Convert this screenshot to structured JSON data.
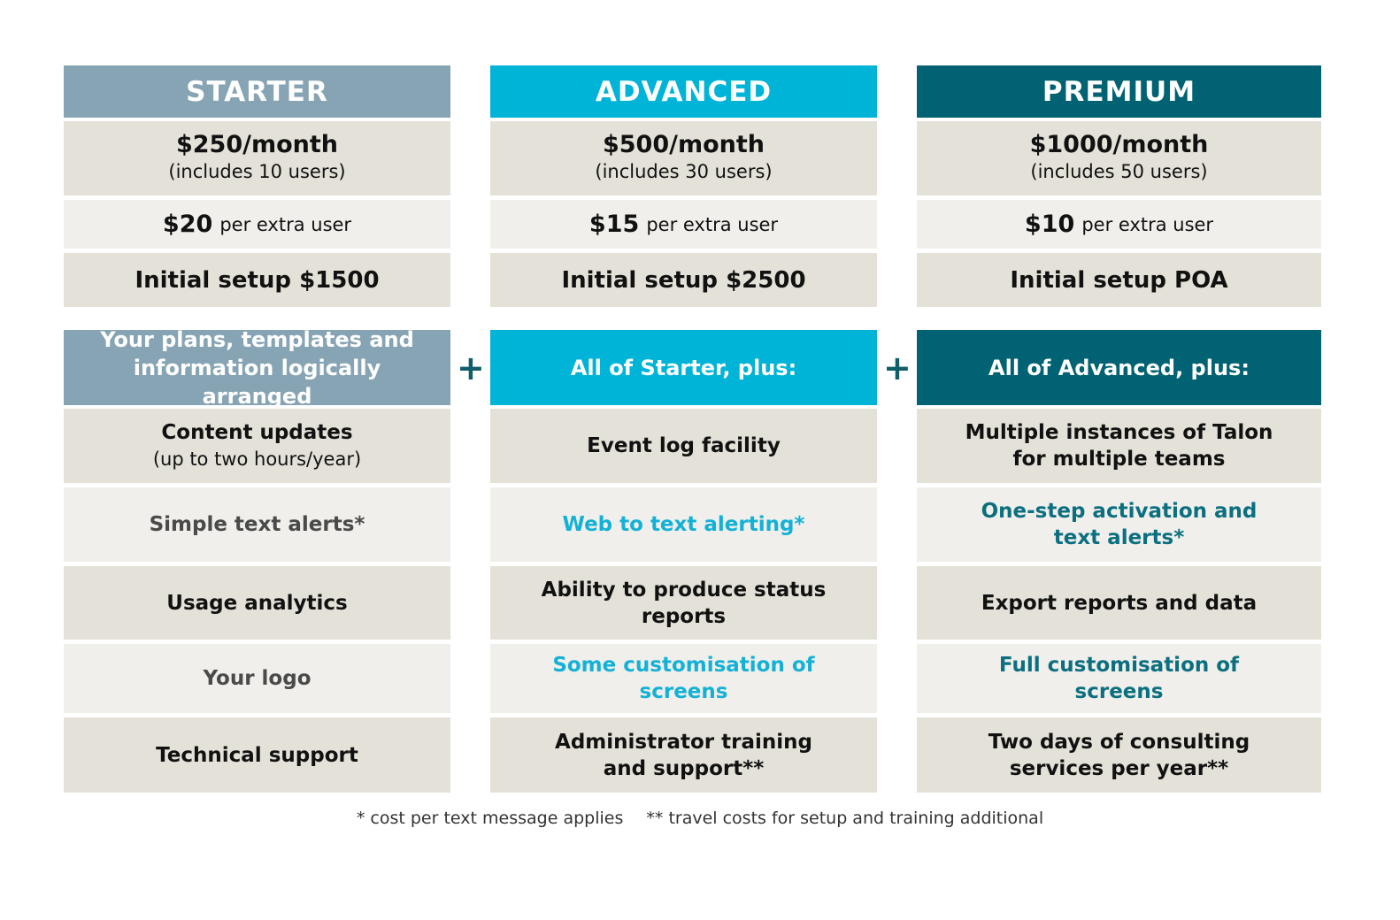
{
  "colors": {
    "starter": "#87a4b4",
    "advanced": "#00b4d8",
    "premium": "#006272",
    "starter_accent": "#4a4a4a",
    "advanced_accent": "#14b1d6",
    "premium_accent": "#0b6f80"
  },
  "plans": [
    {
      "name": "STARTER",
      "price": "$250/month",
      "includes": "(includes 10 users)",
      "extra_price": "$20",
      "extra_label": "per extra user",
      "setup": "Initial setup $1500",
      "features_header": "Your plans, templates and information logically arranged",
      "features": [
        {
          "text": "Content updates",
          "sub": "(up to two hours/year)"
        },
        {
          "text": "Simple text alerts*"
        },
        {
          "text": "Usage analytics"
        },
        {
          "text": "Your logo"
        },
        {
          "text": "Technical support"
        }
      ]
    },
    {
      "name": "ADVANCED",
      "price": "$500/month",
      "includes": "(includes 30 users)",
      "extra_price": "$15",
      "extra_label": "per extra user",
      "setup": "Initial setup $2500",
      "features_header": "All of Starter, plus:",
      "features": [
        {
          "text": "Event log facility"
        },
        {
          "text": "Web to text alerting*"
        },
        {
          "text": "Ability to produce status reports"
        },
        {
          "text": "Some customisation of screens"
        },
        {
          "text": "Administrator training and support**"
        }
      ]
    },
    {
      "name": "PREMIUM",
      "price": "$1000/month",
      "includes": "(includes 50 users)",
      "extra_price": "$10",
      "extra_label": "per extra user",
      "setup": "Initial setup POA",
      "features_header": "All of Advanced, plus:",
      "features": [
        {
          "text": "Multiple instances of Talon for multiple teams"
        },
        {
          "text": "One-step activation and text alerts*"
        },
        {
          "text": "Export reports and data"
        },
        {
          "text": "Full customisation of screens"
        },
        {
          "text": "Two days of consulting services per year**"
        }
      ]
    }
  ],
  "plus_sign": "+",
  "footnotes": [
    "* cost per text message applies",
    "** travel costs for setup and training additional"
  ]
}
